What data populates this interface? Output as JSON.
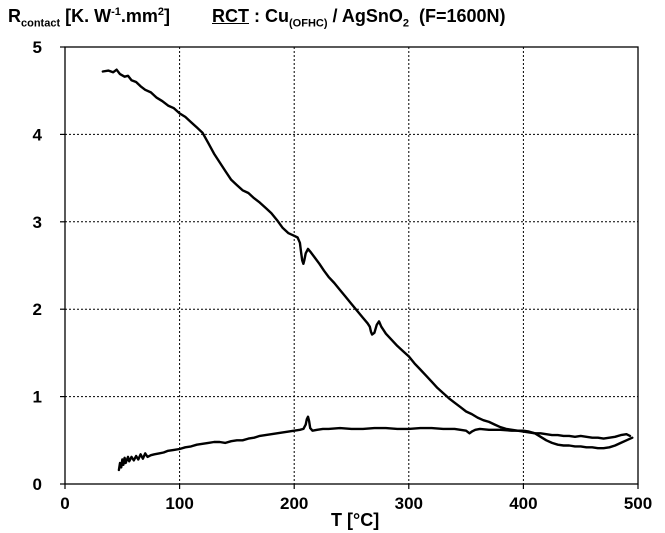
{
  "chart_data": {
    "type": "line",
    "title": {
      "prefix": "RCT",
      "sep": " : Cu",
      "sub1": "(OFHC)",
      "mid": " / AgSnO",
      "sub2": "2",
      "tail": "  (F=1600N)"
    },
    "ylabel": {
      "main": "R",
      "sub": "contact",
      "a": " [K. W",
      "sup1": "-1",
      "b": ".mm",
      "sup2": "2",
      "c": "]"
    },
    "xlabel": "T [°C]",
    "xlim": [
      0,
      500
    ],
    "ylim": [
      0,
      5
    ],
    "xticks": [
      {
        "label": "0",
        "value": 0
      },
      {
        "label": "100",
        "value": 100
      },
      {
        "label": "200",
        "value": 200
      },
      {
        "label": "300",
        "value": 300
      },
      {
        "label": "400",
        "value": 400
      },
      {
        "label": "500",
        "value": 500
      }
    ],
    "yticks": [
      {
        "label": "0",
        "value": 0
      },
      {
        "label": "1",
        "value": 1
      },
      {
        "label": "2",
        "value": 2
      },
      {
        "label": "3",
        "value": 3
      },
      {
        "label": "4",
        "value": 4
      },
      {
        "label": "5",
        "value": 5
      }
    ],
    "grid": true,
    "series": [
      {
        "points": [
          [
            33,
            4.72
          ],
          [
            38,
            4.73
          ],
          [
            42,
            4.71
          ],
          [
            45,
            4.74
          ],
          [
            48,
            4.69
          ],
          [
            52,
            4.66
          ],
          [
            55,
            4.67
          ],
          [
            58,
            4.62
          ],
          [
            62,
            4.6
          ],
          [
            66,
            4.55
          ],
          [
            70,
            4.51
          ],
          [
            75,
            4.48
          ],
          [
            80,
            4.42
          ],
          [
            85,
            4.38
          ],
          [
            90,
            4.33
          ],
          [
            95,
            4.3
          ],
          [
            100,
            4.24
          ],
          [
            105,
            4.2
          ],
          [
            110,
            4.14
          ],
          [
            115,
            4.08
          ],
          [
            120,
            4.02
          ],
          [
            125,
            3.9
          ],
          [
            130,
            3.78
          ],
          [
            135,
            3.68
          ],
          [
            140,
            3.58
          ],
          [
            145,
            3.48
          ],
          [
            150,
            3.42
          ],
          [
            155,
            3.36
          ],
          [
            160,
            3.33
          ],
          [
            165,
            3.27
          ],
          [
            170,
            3.22
          ],
          [
            175,
            3.16
          ],
          [
            180,
            3.1
          ],
          [
            185,
            3.02
          ],
          [
            190,
            2.93
          ],
          [
            195,
            2.87
          ],
          [
            200,
            2.84
          ],
          [
            203,
            2.82
          ],
          [
            205,
            2.76
          ],
          [
            206,
            2.65
          ],
          [
            207,
            2.56
          ],
          [
            208,
            2.52
          ],
          [
            209,
            2.57
          ],
          [
            210,
            2.64
          ],
          [
            212,
            2.69
          ],
          [
            214,
            2.66
          ],
          [
            218,
            2.59
          ],
          [
            222,
            2.52
          ],
          [
            226,
            2.44
          ],
          [
            230,
            2.37
          ],
          [
            235,
            2.3
          ],
          [
            240,
            2.22
          ],
          [
            245,
            2.14
          ],
          [
            250,
            2.06
          ],
          [
            255,
            1.98
          ],
          [
            260,
            1.9
          ],
          [
            264,
            1.84
          ],
          [
            266,
            1.8
          ],
          [
            267,
            1.74
          ],
          [
            268,
            1.71
          ],
          [
            270,
            1.73
          ],
          [
            272,
            1.82
          ],
          [
            274,
            1.86
          ],
          [
            276,
            1.8
          ],
          [
            280,
            1.72
          ],
          [
            285,
            1.65
          ],
          [
            290,
            1.58
          ],
          [
            295,
            1.52
          ],
          [
            300,
            1.46
          ],
          [
            305,
            1.38
          ],
          [
            310,
            1.31
          ],
          [
            315,
            1.24
          ],
          [
            320,
            1.17
          ],
          [
            325,
            1.1
          ],
          [
            330,
            1.04
          ],
          [
            335,
            0.98
          ],
          [
            340,
            0.93
          ],
          [
            345,
            0.88
          ],
          [
            350,
            0.83
          ],
          [
            355,
            0.8
          ],
          [
            360,
            0.76
          ],
          [
            365,
            0.73
          ],
          [
            370,
            0.71
          ],
          [
            375,
            0.68
          ],
          [
            380,
            0.65
          ],
          [
            385,
            0.63
          ],
          [
            390,
            0.62
          ],
          [
            395,
            0.61
          ],
          [
            400,
            0.6
          ],
          [
            405,
            0.59
          ],
          [
            410,
            0.58
          ],
          [
            415,
            0.58
          ],
          [
            420,
            0.57
          ],
          [
            425,
            0.56
          ],
          [
            430,
            0.56
          ],
          [
            435,
            0.55
          ],
          [
            440,
            0.55
          ],
          [
            445,
            0.54
          ],
          [
            450,
            0.55
          ],
          [
            455,
            0.54
          ],
          [
            460,
            0.53
          ],
          [
            465,
            0.53
          ],
          [
            470,
            0.52
          ],
          [
            475,
            0.53
          ],
          [
            480,
            0.54
          ],
          [
            485,
            0.56
          ],
          [
            490,
            0.57
          ],
          [
            493,
            0.55
          ]
        ]
      },
      {
        "points": [
          [
            47,
            0.16
          ],
          [
            48,
            0.24
          ],
          [
            49,
            0.19
          ],
          [
            50,
            0.28
          ],
          [
            51,
            0.22
          ],
          [
            52,
            0.3
          ],
          [
            53,
            0.24
          ],
          [
            55,
            0.31
          ],
          [
            56,
            0.26
          ],
          [
            58,
            0.31
          ],
          [
            60,
            0.27
          ],
          [
            62,
            0.32
          ],
          [
            64,
            0.28
          ],
          [
            66,
            0.34
          ],
          [
            68,
            0.29
          ],
          [
            70,
            0.35
          ],
          [
            72,
            0.31
          ],
          [
            75,
            0.33
          ],
          [
            78,
            0.34
          ],
          [
            82,
            0.35
          ],
          [
            86,
            0.36
          ],
          [
            90,
            0.38
          ],
          [
            95,
            0.39
          ],
          [
            100,
            0.4
          ],
          [
            105,
            0.42
          ],
          [
            110,
            0.43
          ],
          [
            115,
            0.45
          ],
          [
            120,
            0.46
          ],
          [
            125,
            0.47
          ],
          [
            130,
            0.48
          ],
          [
            135,
            0.48
          ],
          [
            140,
            0.47
          ],
          [
            145,
            0.49
          ],
          [
            150,
            0.5
          ],
          [
            155,
            0.5
          ],
          [
            160,
            0.52
          ],
          [
            165,
            0.53
          ],
          [
            170,
            0.55
          ],
          [
            175,
            0.56
          ],
          [
            180,
            0.57
          ],
          [
            185,
            0.58
          ],
          [
            190,
            0.59
          ],
          [
            195,
            0.6
          ],
          [
            200,
            0.61
          ],
          [
            205,
            0.62
          ],
          [
            208,
            0.63
          ],
          [
            210,
            0.68
          ],
          [
            211,
            0.74
          ],
          [
            212,
            0.77
          ],
          [
            213,
            0.72
          ],
          [
            214,
            0.64
          ],
          [
            216,
            0.61
          ],
          [
            220,
            0.62
          ],
          [
            225,
            0.63
          ],
          [
            230,
            0.63
          ],
          [
            240,
            0.64
          ],
          [
            250,
            0.63
          ],
          [
            260,
            0.63
          ],
          [
            270,
            0.64
          ],
          [
            280,
            0.64
          ],
          [
            290,
            0.63
          ],
          [
            300,
            0.63
          ],
          [
            310,
            0.64
          ],
          [
            320,
            0.64
          ],
          [
            330,
            0.63
          ],
          [
            340,
            0.63
          ],
          [
            345,
            0.62
          ],
          [
            350,
            0.61
          ],
          [
            353,
            0.58
          ],
          [
            355,
            0.6
          ],
          [
            358,
            0.62
          ],
          [
            362,
            0.63
          ],
          [
            370,
            0.62
          ],
          [
            380,
            0.62
          ],
          [
            390,
            0.61
          ],
          [
            400,
            0.61
          ],
          [
            405,
            0.6
          ],
          [
            410,
            0.58
          ],
          [
            415,
            0.54
          ],
          [
            420,
            0.5
          ],
          [
            425,
            0.47
          ],
          [
            430,
            0.45
          ],
          [
            435,
            0.44
          ],
          [
            440,
            0.44
          ],
          [
            445,
            0.43
          ],
          [
            450,
            0.43
          ],
          [
            455,
            0.42
          ],
          [
            460,
            0.42
          ],
          [
            465,
            0.41
          ],
          [
            470,
            0.41
          ],
          [
            475,
            0.42
          ],
          [
            480,
            0.44
          ],
          [
            485,
            0.47
          ],
          [
            490,
            0.5
          ],
          [
            495,
            0.53
          ]
        ]
      }
    ]
  }
}
